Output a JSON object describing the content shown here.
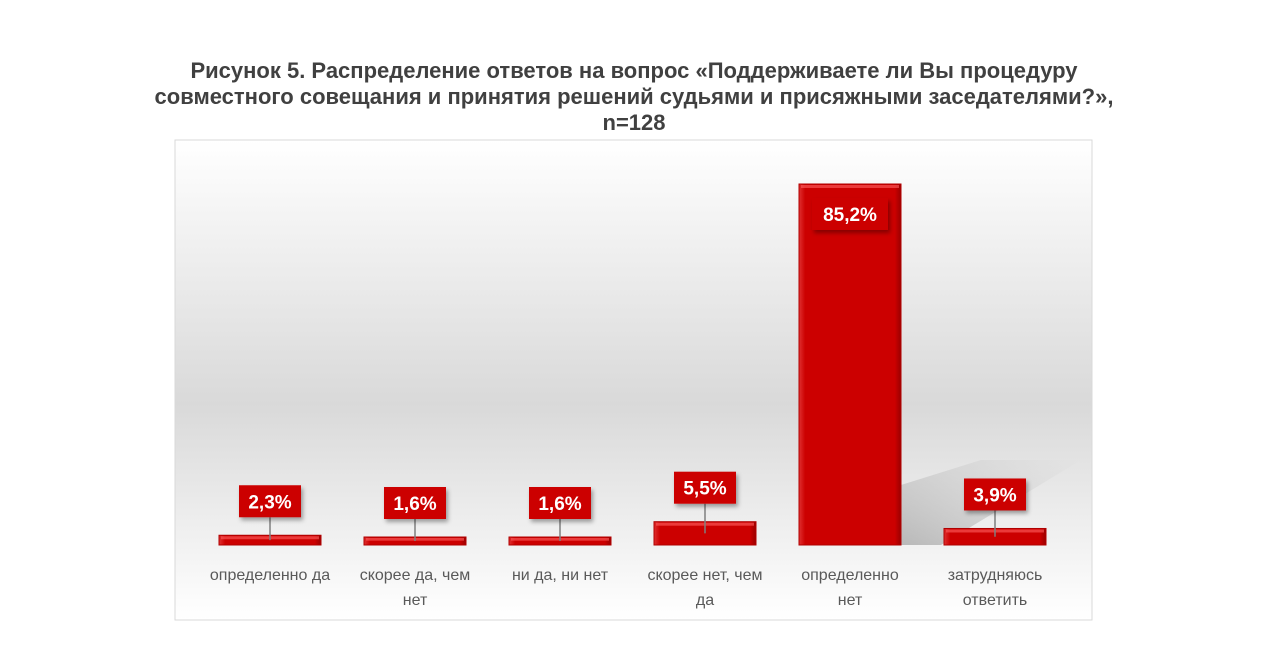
{
  "chart_data": {
    "type": "bar",
    "title_lines": [
      "Рисунок 5. Распределение ответов на вопрос «Поддерживаете ли Вы процедуру",
      "совместного совещания и принятия решений судьями и присяжными заседателями?»,",
      "n=128"
    ],
    "categories": [
      [
        "определенно да"
      ],
      [
        "скорее да, чем",
        "нет"
      ],
      [
        "ни да, ни нет"
      ],
      [
        "скорее нет, чем",
        "да"
      ],
      [
        "определенно",
        "нет"
      ],
      [
        "затрудняюсь",
        "ответить"
      ]
    ],
    "values": [
      2.3,
      1.6,
      1.6,
      5.5,
      85.2,
      3.9
    ],
    "data_labels": [
      "2,3%",
      "1,6%",
      "1,6%",
      "5,5%",
      "85,2%",
      "3,9%"
    ],
    "unit": "%",
    "ylim": [
      0,
      90
    ],
    "grid": false,
    "legend": "none",
    "colors": {
      "bar": "#cc0000",
      "label_bg": "#cc0000",
      "label_text": "#ffffff",
      "axis_text": "#595959"
    }
  }
}
